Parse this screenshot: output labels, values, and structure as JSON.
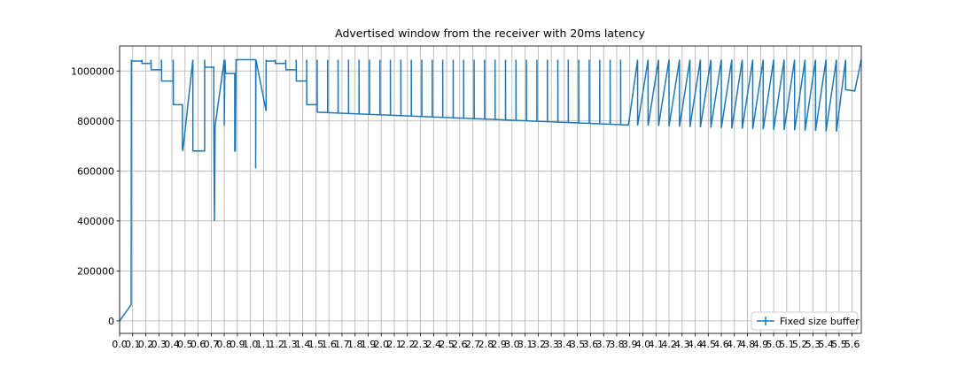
{
  "chart_data": {
    "type": "line",
    "title": "Advertised window from the receiver with 20ms latency",
    "x": [
      0,
      0.088,
      0.09,
      0.09,
      0.17,
      0.17,
      0.171,
      0.24,
      0.24,
      0.241,
      0.32,
      0.32,
      0.321,
      0.41,
      0.41,
      0.411,
      0.48,
      0.48,
      0.483,
      0.56,
      0.56,
      0.65,
      0.65,
      0.651,
      0.72,
      0.72,
      0.725,
      0.73,
      0.8,
      0.8,
      0.805,
      0.81,
      0.88,
      0.88,
      0.885,
      0.89,
      1.04,
      1.04,
      1.042,
      1.12,
      1.12,
      1.121,
      1.19,
      1.19,
      1.191,
      1.27,
      1.27,
      1.271,
      1.35,
      1.35,
      1.351,
      1.43,
      1.43,
      1.431,
      1.51,
      1.51,
      1.511,
      1.59,
      1.59,
      1.591,
      1.67,
      1.67,
      1.671,
      1.75,
      1.75,
      1.751,
      1.83,
      1.83,
      1.831,
      1.91,
      1.91,
      1.911,
      1.99,
      1.99,
      1.991,
      2.07,
      2.07,
      2.071,
      2.15,
      2.15,
      2.151,
      2.23,
      2.23,
      2.231,
      2.31,
      2.31,
      2.311,
      2.39,
      2.39,
      2.391,
      2.47,
      2.47,
      2.471,
      2.55,
      2.55,
      2.551,
      2.63,
      2.63,
      2.631,
      2.71,
      2.71,
      2.711,
      2.79,
      2.79,
      2.791,
      2.87,
      2.87,
      2.871,
      2.95,
      2.95,
      2.951,
      3.03,
      3.03,
      3.031,
      3.11,
      3.11,
      3.111,
      3.19,
      3.19,
      3.191,
      3.27,
      3.27,
      3.271,
      3.35,
      3.35,
      3.351,
      3.43,
      3.43,
      3.431,
      3.51,
      3.51,
      3.511,
      3.59,
      3.59,
      3.591,
      3.67,
      3.67,
      3.671,
      3.75,
      3.75,
      3.751,
      3.83,
      3.83,
      3.831,
      3.89,
      3.96,
      3.96,
      4.04,
      4.04,
      4.12,
      4.12,
      4.2,
      4.2,
      4.28,
      4.28,
      4.36,
      4.36,
      4.44,
      4.44,
      4.52,
      4.52,
      4.6,
      4.6,
      4.68,
      4.68,
      4.76,
      4.76,
      4.84,
      4.84,
      4.92,
      4.92,
      5.0,
      5.0,
      5.08,
      5.08,
      5.16,
      5.16,
      5.24,
      5.24,
      5.32,
      5.32,
      5.4,
      5.4,
      5.48,
      5.48,
      5.55,
      5.55,
      5.62,
      5.67
    ],
    "series": [
      {
        "name": "Fixed size buffer",
        "color": "#1f77b4",
        "values": [
          0,
          65000,
          1045000,
          1040000,
          1040000,
          1045000,
          1030000,
          1030000,
          1045000,
          1005000,
          1005000,
          1045000,
          960000,
          960000,
          1045000,
          865000,
          865000,
          690000,
          680000,
          1045000,
          680000,
          680000,
          1045000,
          1015000,
          1015000,
          760000,
          400000,
          780000,
          1045000,
          780000,
          1045000,
          990000,
          990000,
          680000,
          680000,
          1045000,
          1045000,
          610000,
          1045000,
          840000,
          1045000,
          1040000,
          1040000,
          1045000,
          1030000,
          1030000,
          1045000,
          1005000,
          1005000,
          1045000,
          960000,
          960000,
          1045000,
          865000,
          865000,
          1045000,
          835000,
          833300,
          1045000,
          833300,
          831600,
          1045000,
          831600,
          829800,
          1045000,
          829800,
          828100,
          1045000,
          828100,
          826400,
          1045000,
          826400,
          824700,
          1045000,
          824700,
          823000,
          1045000,
          823000,
          821200,
          1045000,
          821200,
          819500,
          1045000,
          819500,
          817800,
          1045000,
          817800,
          816100,
          1045000,
          816100,
          814400,
          1045000,
          814400,
          812600,
          1045000,
          812600,
          810900,
          1045000,
          810900,
          809200,
          1045000,
          809200,
          807500,
          1045000,
          807500,
          805800,
          1045000,
          805800,
          804000,
          1045000,
          804000,
          802300,
          1045000,
          802300,
          800600,
          1045000,
          800600,
          798900,
          1045000,
          798900,
          797200,
          1045000,
          797200,
          795400,
          1045000,
          795400,
          793700,
          1045000,
          793700,
          792000,
          1045000,
          792000,
          790300,
          1045000,
          790300,
          788600,
          1045000,
          788600,
          786800,
          1045000,
          786800,
          785100,
          1045000,
          785100,
          784000,
          1045000,
          782000,
          1045000,
          781000,
          1045000,
          780000,
          1045000,
          778500,
          1045000,
          777000,
          1045000,
          776000,
          1045000,
          774500,
          1045000,
          773000,
          1045000,
          772000,
          1045000,
          770500,
          1045000,
          769000,
          1045000,
          768000,
          1045000,
          766500,
          1045000,
          765000,
          1045000,
          764000,
          1045000,
          762500,
          1045000,
          761000,
          1045000,
          760000,
          1045000,
          758500,
          1045000,
          757000,
          1045000,
          925000,
          920000,
          1045000
        ]
      }
    ],
    "xlim": [
      0,
      5.67
    ],
    "ylim": [
      -50000,
      1100000
    ],
    "xticks": [
      {
        "value": 0,
        "label": "0.0"
      },
      0.1,
      0.2,
      0.3,
      0.4,
      0.5,
      0.6,
      0.7,
      0.8,
      0.9,
      {
        "value": 1,
        "label": "1.0"
      },
      1.1,
      1.2,
      1.3,
      1.4,
      1.5,
      1.6,
      1.7,
      1.8,
      1.9,
      {
        "value": 2,
        "label": "2.0"
      },
      2.1,
      2.2,
      2.3,
      2.4,
      2.5,
      2.6,
      2.7,
      2.8,
      2.9,
      {
        "value": 3,
        "label": "3.0"
      },
      3.1,
      3.2,
      3.3,
      3.4,
      3.5,
      3.6,
      3.7,
      3.8,
      3.9,
      {
        "value": 4,
        "label": "4.0"
      },
      4.1,
      4.2,
      4.3,
      4.4,
      4.5,
      4.6,
      4.7,
      4.8,
      4.9,
      {
        "value": 5,
        "label": "5.0"
      },
      5.1,
      5.2,
      5.3,
      5.4,
      5.5,
      5.6
    ],
    "yticks": [
      0,
      200000,
      400000,
      600000,
      800000,
      1000000
    ],
    "grid": true,
    "legend": "lower right"
  }
}
